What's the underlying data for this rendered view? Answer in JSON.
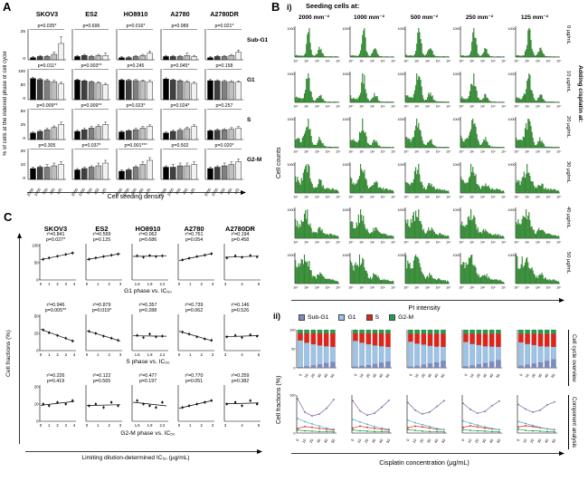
{
  "chart_data": {
    "panelA": {
      "label": "A",
      "type": "bar",
      "cell_lines": [
        "SKOV3",
        "ES2",
        "HO8910",
        "A2780",
        "A2780DR"
      ],
      "y_axis_label": "% of cells at the indexed phase of cell cycle",
      "x_axis_label": "Cell seeding density",
      "densities": [
        "2000",
        "1000",
        "500",
        "250",
        "125"
      ],
      "bar_colors": [
        "#000000",
        "#404040",
        "#808080",
        "#bfbfbf",
        "#f2f2f2"
      ],
      "rows": [
        {
          "phase": "Sub-G1",
          "ylim": [
            0,
            25
          ],
          "yticks": [
            0,
            25
          ],
          "p_values": [
            "p=0.035*",
            "p=0.696",
            "p=0.016*",
            "p=0.989",
            "p=0.021*"
          ],
          "values": [
            [
              2,
              3,
              3,
              5,
              15
            ],
            [
              3,
              4,
              3,
              4,
              4
            ],
            [
              2,
              2,
              3,
              4,
              6
            ],
            [
              3,
              3,
              3,
              4,
              3
            ],
            [
              2,
              3,
              3,
              4,
              7
            ]
          ],
          "errors": [
            [
              1,
              1,
              1,
              2,
              6
            ],
            [
              1,
              1,
              1,
              1,
              2
            ],
            [
              1,
              1,
              1,
              1,
              2
            ],
            [
              1,
              1,
              1,
              2,
              1
            ],
            [
              1,
              1,
              1,
              1,
              2
            ]
          ]
        },
        {
          "phase": "G1",
          "ylim": [
            0,
            100
          ],
          "yticks": [
            0,
            50,
            100
          ],
          "p_values": [
            "p=0.011*",
            "p=0.003**",
            "p=0.245",
            "p=0.045*",
            "p=0.158"
          ],
          "values": [
            [
              78,
              74,
              70,
              66,
              58
            ],
            [
              72,
              69,
              65,
              61,
              55
            ],
            [
              72,
              71,
              70,
              68,
              66
            ],
            [
              76,
              72,
              69,
              65,
              60
            ],
            [
              70,
              69,
              67,
              66,
              64
            ]
          ],
          "errors": [
            [
              4,
              4,
              5,
              5,
              6
            ],
            [
              4,
              4,
              4,
              5,
              5
            ],
            [
              4,
              4,
              4,
              4,
              5
            ],
            [
              4,
              4,
              4,
              5,
              5
            ],
            [
              4,
              4,
              4,
              4,
              5
            ]
          ]
        },
        {
          "phase": "S",
          "ylim": [
            0,
            50
          ],
          "yticks": [
            0,
            25,
            50
          ],
          "p_values": [
            "p=0.009**",
            "p=0.009**",
            "p=0.023*",
            "p=0.024*",
            "p=0.257"
          ],
          "values": [
            [
              12,
              15,
              18,
              22,
              28
            ],
            [
              15,
              18,
              21,
              24,
              28
            ],
            [
              14,
              16,
              18,
              21,
              24
            ],
            [
              12,
              15,
              17,
              20,
              24
            ],
            [
              16,
              17,
              18,
              19,
              21
            ]
          ],
          "errors": [
            [
              2,
              2,
              3,
              3,
              4
            ],
            [
              2,
              3,
              3,
              3,
              4
            ],
            [
              2,
              2,
              3,
              3,
              3
            ],
            [
              2,
              2,
              3,
              3,
              3
            ],
            [
              2,
              2,
              2,
              3,
              3
            ]
          ]
        },
        {
          "phase": "G2-M",
          "ylim": [
            0,
            20
          ],
          "yticks": [
            0,
            10,
            20
          ],
          "p_values": [
            "p=0.305",
            "p=0.037*",
            "p=0.001***",
            "p=0.502",
            "p=0.020*"
          ],
          "values": [
            [
              8,
              9,
              9,
              10,
              11
            ],
            [
              7,
              8,
              9,
              10,
              12
            ],
            [
              6,
              7,
              9,
              11,
              14
            ],
            [
              9,
              9,
              10,
              10,
              11
            ],
            [
              8,
              9,
              10,
              11,
              13
            ]
          ],
          "errors": [
            [
              1,
              1,
              2,
              2,
              2
            ],
            [
              1,
              1,
              1,
              2,
              2
            ],
            [
              1,
              1,
              1,
              2,
              2
            ],
            [
              1,
              2,
              2,
              2,
              2
            ],
            [
              1,
              1,
              2,
              2,
              2
            ]
          ]
        }
      ]
    },
    "panelB_i": {
      "label": "B",
      "sub_label": "i)",
      "type": "histogram-grid",
      "header": "Seeding cells at:",
      "columns": [
        "2000 mm⁻²",
        "1000 mm⁻²",
        "500 mm⁻²",
        "250 mm⁻²",
        "125 mm⁻²"
      ],
      "right_header": "Adding cisplatin at:",
      "rows": [
        "0 µg/mL",
        "10 µg/mL",
        "20 µg/mL",
        "30 µg/mL",
        "40 µg/mL",
        "50 µg/mL"
      ],
      "y_axis_label": "Cell counts",
      "x_axis_label": "PI intensity",
      "y_tick_label": "1000",
      "x_tick_labels": [
        "10⁰",
        "10¹",
        "10²",
        "10³",
        "10⁴"
      ],
      "histogram_color": "#2f8f2f"
    },
    "panelB_ii": {
      "sub_label": "ii)",
      "type": "stacked-bar+line",
      "legend": [
        {
          "label": "Sub-G1",
          "color": "#7c8bc0"
        },
        {
          "label": "G1",
          "color": "#9dc3e6"
        },
        {
          "label": "S",
          "color": "#e2231a"
        },
        {
          "label": "G2-M",
          "color": "#219e4b"
        }
      ],
      "line_colors": {
        "subg1": "#8064a2",
        "g1": "#4bacc6",
        "s": "#e2231a",
        "g2m": "#219e4b"
      },
      "y_axis_label": "Cell fractions (%)",
      "x_axis_label": "Cisplatin concentration (µg/mL)",
      "x_ticks": [
        "0",
        "10",
        "20",
        "30",
        "40",
        "50"
      ],
      "row_labels": [
        "Cell cycle overview",
        "Component analysis"
      ],
      "stacked_charts": [
        {
          "subg1": [
            2,
            4,
            6,
            9,
            12,
            15
          ],
          "g1": [
            70,
            62,
            56,
            50,
            45,
            40
          ],
          "s": [
            19,
            25,
            29,
            32,
            34,
            36
          ],
          "g2m": [
            9,
            9,
            9,
            9,
            9,
            9
          ]
        },
        {
          "subg1": [
            3,
            5,
            7,
            10,
            13,
            16
          ],
          "g1": [
            68,
            61,
            55,
            49,
            44,
            39
          ],
          "s": [
            20,
            25,
            29,
            32,
            34,
            36
          ],
          "g2m": [
            9,
            9,
            9,
            9,
            9,
            9
          ]
        },
        {
          "subg1": [
            3,
            5,
            8,
            11,
            14,
            18
          ],
          "g1": [
            66,
            59,
            53,
            47,
            42,
            37
          ],
          "s": [
            21,
            26,
            29,
            32,
            34,
            35
          ],
          "g2m": [
            10,
            10,
            10,
            10,
            10,
            10
          ]
        },
        {
          "subg1": [
            4,
            6,
            9,
            12,
            16,
            20
          ],
          "g1": [
            64,
            57,
            51,
            45,
            40,
            35
          ],
          "s": [
            22,
            27,
            30,
            33,
            34,
            35
          ],
          "g2m": [
            10,
            10,
            10,
            10,
            10,
            10
          ]
        },
        {
          "subg1": [
            5,
            8,
            11,
            14,
            18,
            22
          ],
          "g1": [
            62,
            55,
            49,
            43,
            38,
            33
          ],
          "s": [
            23,
            27,
            30,
            33,
            34,
            35
          ],
          "g2m": [
            10,
            10,
            10,
            10,
            10,
            10
          ]
        }
      ],
      "line_charts": [
        {
          "subg1": [
            90,
            55,
            45,
            50,
            65,
            88
          ],
          "g1": [
            38,
            30,
            24,
            18,
            13,
            10
          ],
          "s": [
            12,
            17,
            15,
            12,
            10,
            8
          ],
          "g2m": [
            8,
            6,
            5,
            4,
            4,
            3
          ]
        },
        {
          "subg1": [
            85,
            58,
            47,
            52,
            68,
            86
          ],
          "g1": [
            36,
            29,
            23,
            17,
            13,
            10
          ],
          "s": [
            13,
            18,
            15,
            12,
            10,
            8
          ],
          "g2m": [
            8,
            6,
            5,
            4,
            4,
            3
          ]
        },
        {
          "subg1": [
            80,
            60,
            50,
            55,
            70,
            85
          ],
          "g1": [
            34,
            27,
            22,
            17,
            12,
            9
          ],
          "s": [
            14,
            18,
            16,
            13,
            10,
            9
          ],
          "g2m": [
            9,
            7,
            5,
            4,
            4,
            3
          ]
        },
        {
          "subg1": [
            78,
            62,
            52,
            57,
            72,
            84
          ],
          "g1": [
            32,
            26,
            21,
            16,
            12,
            9
          ],
          "s": [
            15,
            19,
            16,
            13,
            11,
            9
          ],
          "g2m": [
            9,
            7,
            6,
            5,
            4,
            3
          ]
        },
        {
          "subg1": [
            75,
            63,
            55,
            60,
            74,
            82
          ],
          "g1": [
            30,
            25,
            20,
            15,
            11,
            8
          ],
          "s": [
            16,
            19,
            17,
            14,
            11,
            9
          ],
          "g2m": [
            10,
            7,
            6,
            5,
            4,
            3
          ]
        }
      ]
    },
    "panelC": {
      "label": "C",
      "type": "scatter",
      "cell_lines": [
        "SKOV3",
        "ES2",
        "HO8910",
        "A2780",
        "A2780DR"
      ],
      "y_axis_label": "Cell fractions (%)",
      "x_axis_label": "Limiting dilution-determined IC₅₀ (µg/mL)",
      "x_ranges": [
        [
          0,
          4
        ],
        [
          0,
          3
        ],
        [
          1.5,
          2.3
        ],
        [
          0,
          3
        ],
        [
          3,
          5
        ]
      ],
      "x_ticks_per_column": [
        [
          "0",
          "1",
          "2",
          "3",
          "4"
        ],
        [
          "0",
          "1",
          "2",
          "3"
        ],
        [
          "1.6",
          "1.9",
          "2.2"
        ],
        [
          "0",
          "1",
          "2",
          "3"
        ],
        [
          "3",
          "4",
          "5"
        ]
      ],
      "x_points": [
        [
          0.3,
          1.0,
          2.0,
          3.0,
          3.8
        ],
        [
          0.2,
          0.8,
          1.5,
          2.2,
          2.8
        ],
        [
          1.6,
          1.75,
          1.9,
          2.05,
          2.2
        ],
        [
          0.3,
          0.9,
          1.6,
          2.3,
          2.9
        ],
        [
          3.1,
          3.6,
          4.0,
          4.5,
          4.9
        ]
      ],
      "rows": [
        {
          "caption": "G1 phase vs. IC₅₀",
          "ylim": [
            0,
            100
          ],
          "yticks": [
            0,
            50,
            100
          ],
          "stats": [
            {
              "r2": "r²=0.841",
              "p": "p=0.027*"
            },
            {
              "r2": "r²=0.599",
              "p": "p=0.125"
            },
            {
              "r2": "r²=0.062",
              "p": "p=0.686"
            },
            {
              "r2": "r²=0.761",
              "p": "p=0.054"
            },
            {
              "r2": "r²=0.194",
              "p": "p=0.458"
            }
          ],
          "y_points": [
            [
              60,
              64,
              69,
              74,
              78
            ],
            [
              60,
              64,
              68,
              72,
              75
            ],
            [
              70,
              66,
              71,
              68,
              70
            ],
            [
              58,
              63,
              68,
              72,
              76
            ],
            [
              64,
              70,
              66,
              71,
              67
            ]
          ]
        },
        {
          "caption": "S phase vs. IC₅₀",
          "ylim": [
            0,
            50
          ],
          "yticks": [
            0,
            25,
            50
          ],
          "stats": [
            {
              "r2": "r²=0.946",
              "p": "p=0.005**"
            },
            {
              "r2": "r²=0.879",
              "p": "p=0.019*"
            },
            {
              "r2": "r²=0.357",
              "p": "p=0.288"
            },
            {
              "r2": "r²=0.739",
              "p": "p=0.062"
            },
            {
              "r2": "r²=0.146",
              "p": "p=0.526"
            }
          ],
          "y_points": [
            [
              30,
              26,
              22,
              18,
              14
            ],
            [
              28,
              25,
              21,
              18,
              15
            ],
            [
              22,
              19,
              24,
              20,
              21
            ],
            [
              27,
              24,
              20,
              17,
              15
            ],
            [
              20,
              22,
              19,
              23,
              21
            ]
          ]
        },
        {
          "caption": "G2-M phase vs. IC₅₀",
          "ylim": [
            0,
            20
          ],
          "yticks": [
            0,
            10,
            20
          ],
          "stats": [
            {
              "r2": "r²=0.226",
              "p": "p=0.419"
            },
            {
              "r2": "r²=0.122",
              "p": "p=0.565"
            },
            {
              "r2": "r²=0.477",
              "p": "p=0.197"
            },
            {
              "r2": "r²=0.770",
              "p": "p=0.051"
            },
            {
              "r2": "r²=0.259",
              "p": "p=0.382"
            }
          ],
          "y_points": [
            [
              10,
              9,
              11,
              10,
              12
            ],
            [
              9,
              10,
              8,
              11,
              9
            ],
            [
              12,
              10,
              9,
              8,
              11
            ],
            [
              8,
              9,
              10,
              11,
              12
            ],
            [
              10,
              11,
              9,
              12,
              10
            ]
          ]
        }
      ]
    }
  }
}
